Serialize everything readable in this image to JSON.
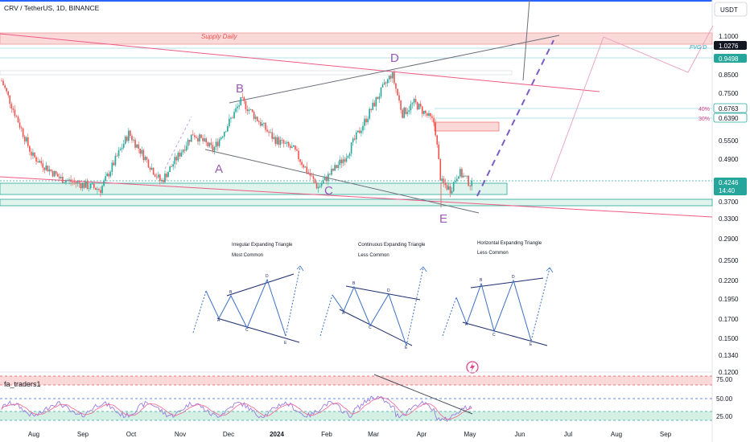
{
  "header": {
    "title": "CRV / TetherUS, 1D, BINANCE"
  },
  "currency_button": "USDT",
  "colors": {
    "up": "#26a69a",
    "down": "#ef5350",
    "pattern": "#9b59b6",
    "supply": "#f7c6c6",
    "demand": "#c8ece3",
    "dashed": "#7b5cc4",
    "rsi": "#9b7be0",
    "rsi_ma": "#f06292"
  },
  "chart_data": {
    "type": "candlestick",
    "symbol": "CRV / TetherUS",
    "interval": "1D",
    "exchange": "BINANCE",
    "y_scale": "log",
    "ylim": [
      0.118,
      1.4
    ],
    "price_axis_ticks": [
      "1.1000",
      "0.8500",
      "0.7500",
      "0.6400",
      "0.5500",
      "0.4900",
      "0.3700",
      "0.3300",
      "0.2900",
      "0.2500",
      "0.2200",
      "0.1950",
      "0.1700",
      "0.1500",
      "0.1340",
      "0.1200"
    ],
    "x_ticks": [
      "Aug",
      "Sep",
      "Oct",
      "Nov",
      "Dec",
      "2024",
      "Feb",
      "Mar",
      "Apr",
      "May",
      "Jun",
      "Jul",
      "Aug",
      "Sep"
    ],
    "price_labels": [
      {
        "id": "supply-top",
        "text": "1.0276",
        "kind": "dark"
      },
      {
        "id": "fvg",
        "text": "0.9498",
        "kind": "teal"
      },
      {
        "id": "fib40",
        "text": "0.6763",
        "kind": "outline",
        "prefix": "40%"
      },
      {
        "id": "fib30",
        "text": "0.6390",
        "kind": "outline",
        "prefix": "30%"
      },
      {
        "id": "last",
        "text": "0.4246",
        "kind": "teal",
        "sub": "14:40"
      }
    ],
    "pattern_points": [
      {
        "label": "A",
        "date_label": "Nov",
        "price": 0.52
      },
      {
        "label": "B",
        "date_label": "Dec",
        "price": 0.72
      },
      {
        "label": "C",
        "date_label": "Jan",
        "price": 0.405
      },
      {
        "label": "D",
        "date_label": "Mar",
        "price": 0.86
      },
      {
        "label": "E",
        "date_label": "Apr",
        "price": 0.36
      }
    ],
    "zones": [
      {
        "label": "Supply Daily",
        "low": 1.0276,
        "high": 1.1
      }
    ],
    "annotations": [
      "FVG D",
      "Supply Daily"
    ],
    "examples": [
      {
        "title": "Irregular Expanding Triangle",
        "subtitle": "Most Common"
      },
      {
        "title": "Continuous Expanding Triangle",
        "subtitle": "Less Common"
      },
      {
        "title": "Horizontal Expanding Triangle",
        "subtitle": "Less Common"
      }
    ],
    "example_point_labels": [
      "A",
      "B",
      "C",
      "D",
      "E"
    ],
    "indicator": {
      "name": "fa_traders1",
      "levels": [
        75.0,
        50.0,
        25.0
      ],
      "level_labels": [
        "75.00",
        "50.00",
        "25.00"
      ]
    },
    "candles_summary": {
      "start": "2023-07",
      "peak_B": 0.72,
      "low_C": 0.405,
      "peak_D": 0.86,
      "wick_E": 0.36,
      "last_close": 0.4246
    }
  }
}
